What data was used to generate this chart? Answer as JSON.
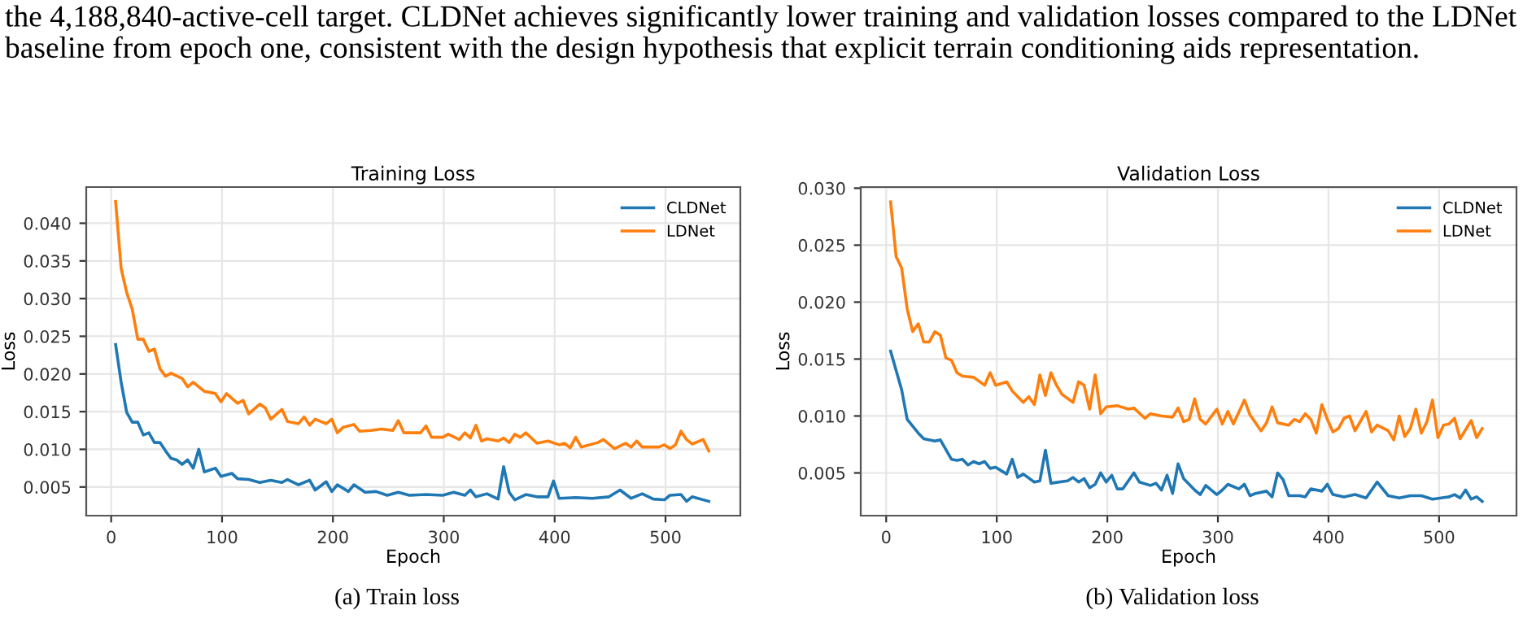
{
  "chart_data": [
    {
      "type": "line",
      "title": "Training Loss",
      "xlabel": "Epoch",
      "ylabel": "Loss",
      "xlim": [
        -22.5,
        567.5
      ],
      "ylim": [
        0.0012,
        0.0448
      ],
      "xticks": [
        0,
        100,
        200,
        300,
        400,
        500
      ],
      "yticks": [
        0.005,
        {
          "value": 0.01,
          "label": "0.010"
        },
        0.015,
        {
          "value": 0.02,
          "label": "0.020"
        },
        0.025,
        {
          "value": 0.03,
          "label": "0.030"
        },
        0.035,
        {
          "value": 0.04,
          "label": "0.040"
        }
      ],
      "grid": true,
      "legend": "top right",
      "annotations": [
        "the 4,188,840-active-cell target. CLDNet achieves significantly lower training and validation losses compared to the LDNet baseline from epoch one, consistent with the design hypothesis that explicit terrain conditioning aids representation.",
        "(a) Train loss"
      ],
      "series": [
        {
          "name": "CLDNet",
          "color": "#1f77b4",
          "x": [
            4,
            9,
            14,
            19,
            24,
            29,
            34,
            39,
            44,
            49,
            54,
            59,
            64,
            69,
            74,
            79,
            84,
            94,
            99,
            109,
            114,
            124,
            134,
            144,
            154,
            159,
            169,
            179,
            184,
            194,
            199,
            204,
            214,
            219,
            229,
            239,
            249,
            259,
            269,
            284,
            299,
            309,
            319,
            324,
            329,
            339,
            349,
            354,
            359,
            364,
            374,
            384,
            394,
            399,
            404,
            419,
            434,
            449,
            459,
            469,
            479,
            489,
            499,
            504,
            514,
            519,
            524,
            539
          ],
          "values": [
            0.0239,
            0.0189,
            0.0149,
            0.0136,
            0.0136,
            0.0119,
            0.0122,
            0.0109,
            0.0109,
            0.0098,
            0.0088,
            0.0086,
            0.008,
            0.0086,
            0.0075,
            0.01,
            0.007,
            0.0075,
            0.0064,
            0.0068,
            0.0061,
            0.006,
            0.0056,
            0.0059,
            0.0056,
            0.006,
            0.0053,
            0.0059,
            0.0046,
            0.0057,
            0.0044,
            0.0053,
            0.0044,
            0.0053,
            0.0043,
            0.0044,
            0.0039,
            0.0043,
            0.0039,
            0.004,
            0.0039,
            0.0043,
            0.0039,
            0.0046,
            0.0037,
            0.0041,
            0.0034,
            0.0077,
            0.0043,
            0.0033,
            0.004,
            0.0037,
            0.0037,
            0.0058,
            0.0035,
            0.0036,
            0.0035,
            0.0037,
            0.0046,
            0.0035,
            0.0041,
            0.0034,
            0.0033,
            0.0039,
            0.004,
            0.0031,
            0.0037,
            0.0031
          ]
        },
        {
          "name": "LDNet",
          "color": "#ff7f0e",
          "x": [
            4,
            9,
            14,
            19,
            24,
            29,
            34,
            39,
            44,
            49,
            54,
            64,
            69,
            74,
            84,
            94,
            99,
            104,
            114,
            119,
            124,
            134,
            139,
            144,
            154,
            159,
            169,
            174,
            179,
            184,
            194,
            199,
            204,
            209,
            219,
            224,
            234,
            244,
            254,
            259,
            264,
            279,
            284,
            289,
            299,
            304,
            314,
            319,
            324,
            329,
            334,
            339,
            349,
            354,
            359,
            364,
            369,
            374,
            384,
            394,
            404,
            409,
            414,
            419,
            424,
            439,
            444,
            454,
            464,
            469,
            474,
            479,
            494,
            499,
            504,
            509,
            514,
            519,
            524,
            534,
            539
          ],
          "values": [
            0.0429,
            0.034,
            0.0308,
            0.0286,
            0.0246,
            0.0246,
            0.023,
            0.0233,
            0.0207,
            0.0197,
            0.0201,
            0.0194,
            0.0183,
            0.0189,
            0.0177,
            0.0174,
            0.0163,
            0.0174,
            0.0161,
            0.0165,
            0.0147,
            0.016,
            0.0155,
            0.014,
            0.0153,
            0.0137,
            0.0134,
            0.0143,
            0.0132,
            0.014,
            0.0134,
            0.014,
            0.0122,
            0.0129,
            0.0133,
            0.0124,
            0.0125,
            0.0127,
            0.0125,
            0.0138,
            0.0122,
            0.0122,
            0.0131,
            0.0116,
            0.0116,
            0.012,
            0.0113,
            0.0122,
            0.0115,
            0.0132,
            0.0111,
            0.0114,
            0.0111,
            0.0115,
            0.0109,
            0.012,
            0.0116,
            0.0122,
            0.0108,
            0.0111,
            0.0106,
            0.0108,
            0.0102,
            0.0116,
            0.0103,
            0.0109,
            0.0113,
            0.0101,
            0.0108,
            0.0103,
            0.0111,
            0.0103,
            0.0103,
            0.0106,
            0.0101,
            0.0106,
            0.0124,
            0.0113,
            0.0107,
            0.0113,
            0.0098
          ]
        }
      ]
    },
    {
      "type": "line",
      "title": "Validation Loss",
      "xlabel": "Epoch",
      "ylabel": "Loss",
      "xlim": [
        -23,
        570
      ],
      "ylim": [
        0.00125,
        0.0301
      ],
      "xticks": [
        0,
        100,
        200,
        300,
        400,
        500
      ],
      "yticks": [
        0.005,
        {
          "value": 0.01,
          "label": "0.010"
        },
        0.015,
        {
          "value": 0.02,
          "label": "0.020"
        },
        0.025,
        {
          "value": 0.03,
          "label": "0.030"
        }
      ],
      "grid": true,
      "legend": "top right",
      "annotations": [
        "(b) Validation loss"
      ],
      "series": [
        {
          "name": "CLDNet",
          "color": "#1f77b4",
          "x": [
            4,
            14,
            19,
            29,
            34,
            44,
            49,
            59,
            64,
            69,
            74,
            79,
            84,
            89,
            94,
            99,
            109,
            114,
            119,
            124,
            134,
            139,
            144,
            149,
            164,
            169,
            174,
            179,
            184,
            189,
            194,
            199,
            204,
            209,
            214,
            224,
            229,
            239,
            244,
            249,
            254,
            259,
            264,
            269,
            279,
            284,
            289,
            299,
            304,
            309,
            319,
            324,
            329,
            334,
            344,
            349,
            354,
            359,
            364,
            374,
            379,
            384,
            394,
            399,
            404,
            414,
            424,
            434,
            444,
            454,
            464,
            474,
            484,
            494,
            509,
            514,
            519,
            524,
            529,
            534,
            539
          ],
          "values": [
            0.0157,
            0.0123,
            0.0097,
            0.0085,
            0.008,
            0.0078,
            0.0079,
            0.0062,
            0.0061,
            0.0062,
            0.0057,
            0.006,
            0.0058,
            0.006,
            0.0054,
            0.0055,
            0.0049,
            0.0062,
            0.0046,
            0.0049,
            0.0042,
            0.0043,
            0.007,
            0.0041,
            0.0043,
            0.0046,
            0.0042,
            0.0045,
            0.0037,
            0.004,
            0.005,
            0.0042,
            0.0048,
            0.0036,
            0.0036,
            0.005,
            0.0042,
            0.0039,
            0.0041,
            0.0035,
            0.0048,
            0.0032,
            0.0058,
            0.0045,
            0.0035,
            0.0031,
            0.0039,
            0.0031,
            0.0035,
            0.004,
            0.0036,
            0.004,
            0.003,
            0.0032,
            0.0034,
            0.0029,
            0.005,
            0.0044,
            0.003,
            0.003,
            0.0029,
            0.0036,
            0.0034,
            0.004,
            0.0031,
            0.0029,
            0.0031,
            0.0028,
            0.0042,
            0.003,
            0.0028,
            0.003,
            0.003,
            0.0027,
            0.0029,
            0.0031,
            0.0028,
            0.0035,
            0.0027,
            0.0029,
            0.0025
          ]
        },
        {
          "name": "LDNet",
          "color": "#ff7f0e",
          "x": [
            4,
            9,
            14,
            19,
            24,
            29,
            34,
            39,
            44,
            49,
            54,
            59,
            64,
            69,
            79,
            89,
            94,
            99,
            109,
            114,
            124,
            129,
            134,
            139,
            144,
            149,
            154,
            159,
            169,
            174,
            179,
            184,
            189,
            194,
            199,
            209,
            219,
            224,
            234,
            239,
            249,
            259,
            264,
            269,
            274,
            279,
            284,
            289,
            299,
            304,
            309,
            314,
            324,
            329,
            339,
            344,
            349,
            354,
            364,
            369,
            374,
            379,
            384,
            389,
            394,
            399,
            404,
            409,
            414,
            419,
            424,
            434,
            439,
            444,
            454,
            459,
            464,
            469,
            474,
            479,
            484,
            489,
            494,
            499,
            504,
            509,
            514,
            519,
            529,
            534,
            539
          ],
          "values": [
            0.0288,
            0.024,
            0.023,
            0.0194,
            0.0174,
            0.0181,
            0.0165,
            0.0165,
            0.0174,
            0.0171,
            0.0151,
            0.0149,
            0.0138,
            0.0135,
            0.0134,
            0.0127,
            0.0138,
            0.0127,
            0.013,
            0.0122,
            0.0112,
            0.0117,
            0.011,
            0.0136,
            0.0118,
            0.0138,
            0.0127,
            0.0119,
            0.0112,
            0.013,
            0.0127,
            0.0106,
            0.0136,
            0.0102,
            0.0108,
            0.0109,
            0.0106,
            0.0107,
            0.0098,
            0.0102,
            0.01,
            0.0099,
            0.0107,
            0.0095,
            0.0097,
            0.0115,
            0.0097,
            0.0093,
            0.0106,
            0.0093,
            0.0104,
            0.0093,
            0.0114,
            0.0101,
            0.0087,
            0.0094,
            0.0108,
            0.0094,
            0.0092,
            0.0097,
            0.0095,
            0.0102,
            0.0097,
            0.0085,
            0.011,
            0.0097,
            0.0086,
            0.0089,
            0.0098,
            0.01,
            0.0087,
            0.0104,
            0.0086,
            0.0092,
            0.0087,
            0.0079,
            0.01,
            0.0082,
            0.0089,
            0.0106,
            0.0085,
            0.0095,
            0.0114,
            0.0081,
            0.0092,
            0.0093,
            0.0098,
            0.008,
            0.0096,
            0.0081,
            0.0089
          ]
        }
      ]
    }
  ]
}
